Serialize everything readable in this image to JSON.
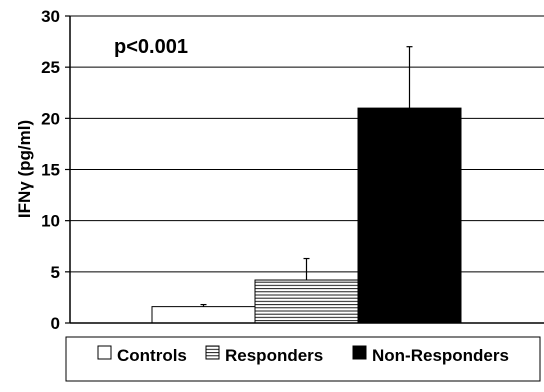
{
  "chart_data": {
    "type": "bar",
    "title": "",
    "xlabel": "",
    "ylabel": "IFNγ (pg/ml)",
    "ylim": [
      0,
      30
    ],
    "yticks": [
      0,
      5,
      10,
      15,
      20,
      25,
      30
    ],
    "grid": true,
    "legend_position": "bottom",
    "annotation": "p<0.001",
    "categories": [
      "Controls",
      "Responders",
      "Non-Responders"
    ],
    "values": [
      1.6,
      4.2,
      21.0
    ],
    "errors": [
      0.2,
      2.1,
      6.0
    ],
    "series_fills": [
      "white",
      "horizontal-lines",
      "black"
    ]
  },
  "legend": {
    "items": [
      {
        "label": "Controls",
        "fill": "white"
      },
      {
        "label": "Responders",
        "fill": "horizontal-lines"
      },
      {
        "label": "Non-Responders",
        "fill": "black"
      }
    ]
  }
}
